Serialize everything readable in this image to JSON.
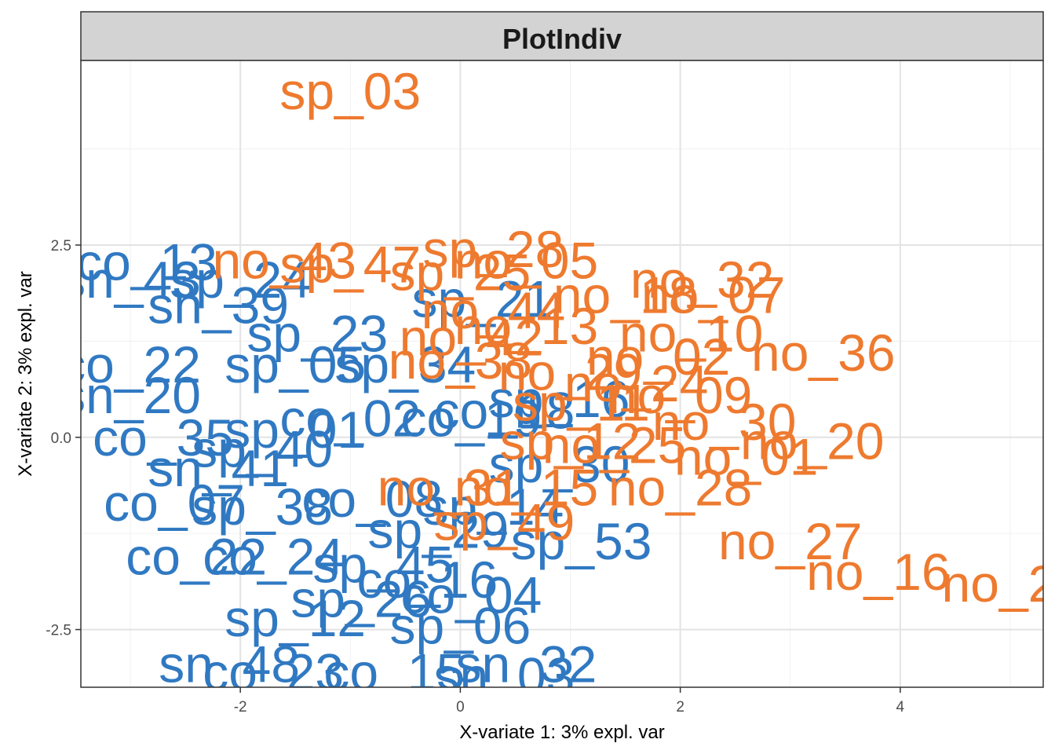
{
  "chart_data": {
    "type": "scatter",
    "title": "PlotIndiv",
    "xlabel": "X-variate 1: 3% expl. var",
    "ylabel": "X-variate 2: 3% expl. var",
    "xlim": [
      -3.45,
      5.3
    ],
    "ylim": [
      -3.25,
      4.9
    ],
    "x_ticks": [
      -2,
      0,
      2,
      4
    ],
    "x_tick_labels": [
      "-2",
      "0",
      "2",
      "4"
    ],
    "y_ticks": [
      -2.5,
      0.0,
      2.5
    ],
    "y_tick_labels": [
      "-2.5",
      "0.0",
      "2.5"
    ],
    "grid": true,
    "legend": "none",
    "colors": {
      "group1": "#3079C2",
      "group2": "#EE7A2F"
    },
    "series": [
      {
        "color": "#3079C2",
        "points": [
          {
            "label": "co_13",
            "x": -2.85,
            "y": 2.28
          },
          {
            "label": "sn_43",
            "x": -3.0,
            "y": 2.05
          },
          {
            "label": "sn_39",
            "x": -2.2,
            "y": 1.72
          },
          {
            "label": "sp_24",
            "x": -2.0,
            "y": 2.05
          },
          {
            "label": "sp_23",
            "x": -1.3,
            "y": 1.35
          },
          {
            "label": "sp_05",
            "x": -1.5,
            "y": 0.95
          },
          {
            "label": "co_22",
            "x": -3.0,
            "y": 0.95
          },
          {
            "label": "sn_20",
            "x": -3.0,
            "y": 0.55
          },
          {
            "label": "sp_34",
            "x": -0.5,
            "y": 0.95
          },
          {
            "label": "sp_21",
            "x": 0.2,
            "y": 1.8
          },
          {
            "label": "co_02",
            "x": -1.0,
            "y": 0.25
          },
          {
            "label": "sp_01",
            "x": -1.5,
            "y": 0.1
          },
          {
            "label": "co_19",
            "x": 0.1,
            "y": 0.25
          },
          {
            "label": "co_18",
            "x": 0.4,
            "y": 0.35
          },
          {
            "label": "sp_16",
            "x": 0.9,
            "y": 0.5
          },
          {
            "label": "co_35",
            "x": -2.7,
            "y": 0.0
          },
          {
            "label": "sp_40",
            "x": -1.8,
            "y": -0.15
          },
          {
            "label": "sn_41",
            "x": -2.2,
            "y": -0.4
          },
          {
            "label": "sp_30",
            "x": 0.9,
            "y": -0.35
          },
          {
            "label": "co_07",
            "x": -2.6,
            "y": -0.85
          },
          {
            "label": "sp_38",
            "x": -1.8,
            "y": -0.9
          },
          {
            "label": "co_08",
            "x": -0.8,
            "y": -0.8
          },
          {
            "label": "sp_14",
            "x": 0.3,
            "y": -0.9
          },
          {
            "label": "sp_29",
            "x": -0.2,
            "y": -1.2
          },
          {
            "label": "sp_53",
            "x": 1.1,
            "y": -1.35
          },
          {
            "label": "co_22",
            "x": -2.4,
            "y": -1.55
          },
          {
            "label": "co_24",
            "x": -1.7,
            "y": -1.55
          },
          {
            "label": "sp_45",
            "x": -0.7,
            "y": -1.65
          },
          {
            "label": "co_16",
            "x": -0.3,
            "y": -1.85
          },
          {
            "label": "sp_26",
            "x": -0.9,
            "y": -2.1
          },
          {
            "label": "co_04",
            "x": 0.1,
            "y": -2.05
          },
          {
            "label": "sp_12",
            "x": -1.5,
            "y": -2.35
          },
          {
            "label": "sp_06",
            "x": 0.0,
            "y": -2.45
          },
          {
            "label": "sn_48",
            "x": -2.1,
            "y": -2.95
          },
          {
            "label": "co_23",
            "x": -1.7,
            "y": -3.05
          },
          {
            "label": "co_15",
            "x": -0.6,
            "y": -3.05
          },
          {
            "label": "sn_32",
            "x": 0.6,
            "y": -2.95
          },
          {
            "label": "sn_03",
            "x": 0.4,
            "y": -3.1
          }
        ]
      },
      {
        "color": "#EE7A2F",
        "points": [
          {
            "label": "sp_03",
            "x": -1.0,
            "y": 4.5
          },
          {
            "label": "sp_47",
            "x": -1.0,
            "y": 2.25
          },
          {
            "label": "no_43",
            "x": -1.6,
            "y": 2.3
          },
          {
            "label": "sp_28",
            "x": 0.3,
            "y": 2.45
          },
          {
            "label": "no_05",
            "x": 0.6,
            "y": 2.3
          },
          {
            "label": "sp_25",
            "x": 0.0,
            "y": 2.15
          },
          {
            "label": "no_32",
            "x": 2.2,
            "y": 2.05
          },
          {
            "label": "no_18",
            "x": 1.5,
            "y": 1.85
          },
          {
            "label": "no_07",
            "x": 2.3,
            "y": 1.85
          },
          {
            "label": "no_44",
            "x": 0.3,
            "y": 1.65
          },
          {
            "label": "no_13",
            "x": 0.6,
            "y": 1.45
          },
          {
            "label": "no_42",
            "x": 0.1,
            "y": 1.3
          },
          {
            "label": "no_10",
            "x": 2.1,
            "y": 1.35
          },
          {
            "label": "no_36",
            "x": 3.3,
            "y": 1.1
          },
          {
            "label": "no_38",
            "x": 0.0,
            "y": 1.0
          },
          {
            "label": "no_02",
            "x": 1.8,
            "y": 1.05
          },
          {
            "label": "no_29",
            "x": 1.0,
            "y": 0.85
          },
          {
            "label": "no_24",
            "x": 1.6,
            "y": 0.7
          },
          {
            "label": "no_09",
            "x": 2.0,
            "y": 0.55
          },
          {
            "label": "sp_11",
            "x": 1.1,
            "y": 0.45
          },
          {
            "label": "no_30",
            "x": 2.4,
            "y": 0.2
          },
          {
            "label": "no_20",
            "x": 3.2,
            "y": -0.05
          },
          {
            "label": "sp_12",
            "x": 1.0,
            "y": -0.05
          },
          {
            "label": "no_25",
            "x": 1.4,
            "y": -0.1
          },
          {
            "label": "no_01",
            "x": 2.6,
            "y": -0.25
          },
          {
            "label": "no_28",
            "x": 2.0,
            "y": -0.65
          },
          {
            "label": "no_31",
            "x": -0.1,
            "y": -0.65
          },
          {
            "label": "no_15",
            "x": 0.6,
            "y": -0.65
          },
          {
            "label": "sp_49",
            "x": 0.4,
            "y": -1.1
          },
          {
            "label": "no_27",
            "x": 3.0,
            "y": -1.35
          },
          {
            "label": "no_16",
            "x": 3.8,
            "y": -1.75
          },
          {
            "label": "no_2",
            "x": 4.9,
            "y": -1.9
          }
        ]
      }
    ]
  }
}
